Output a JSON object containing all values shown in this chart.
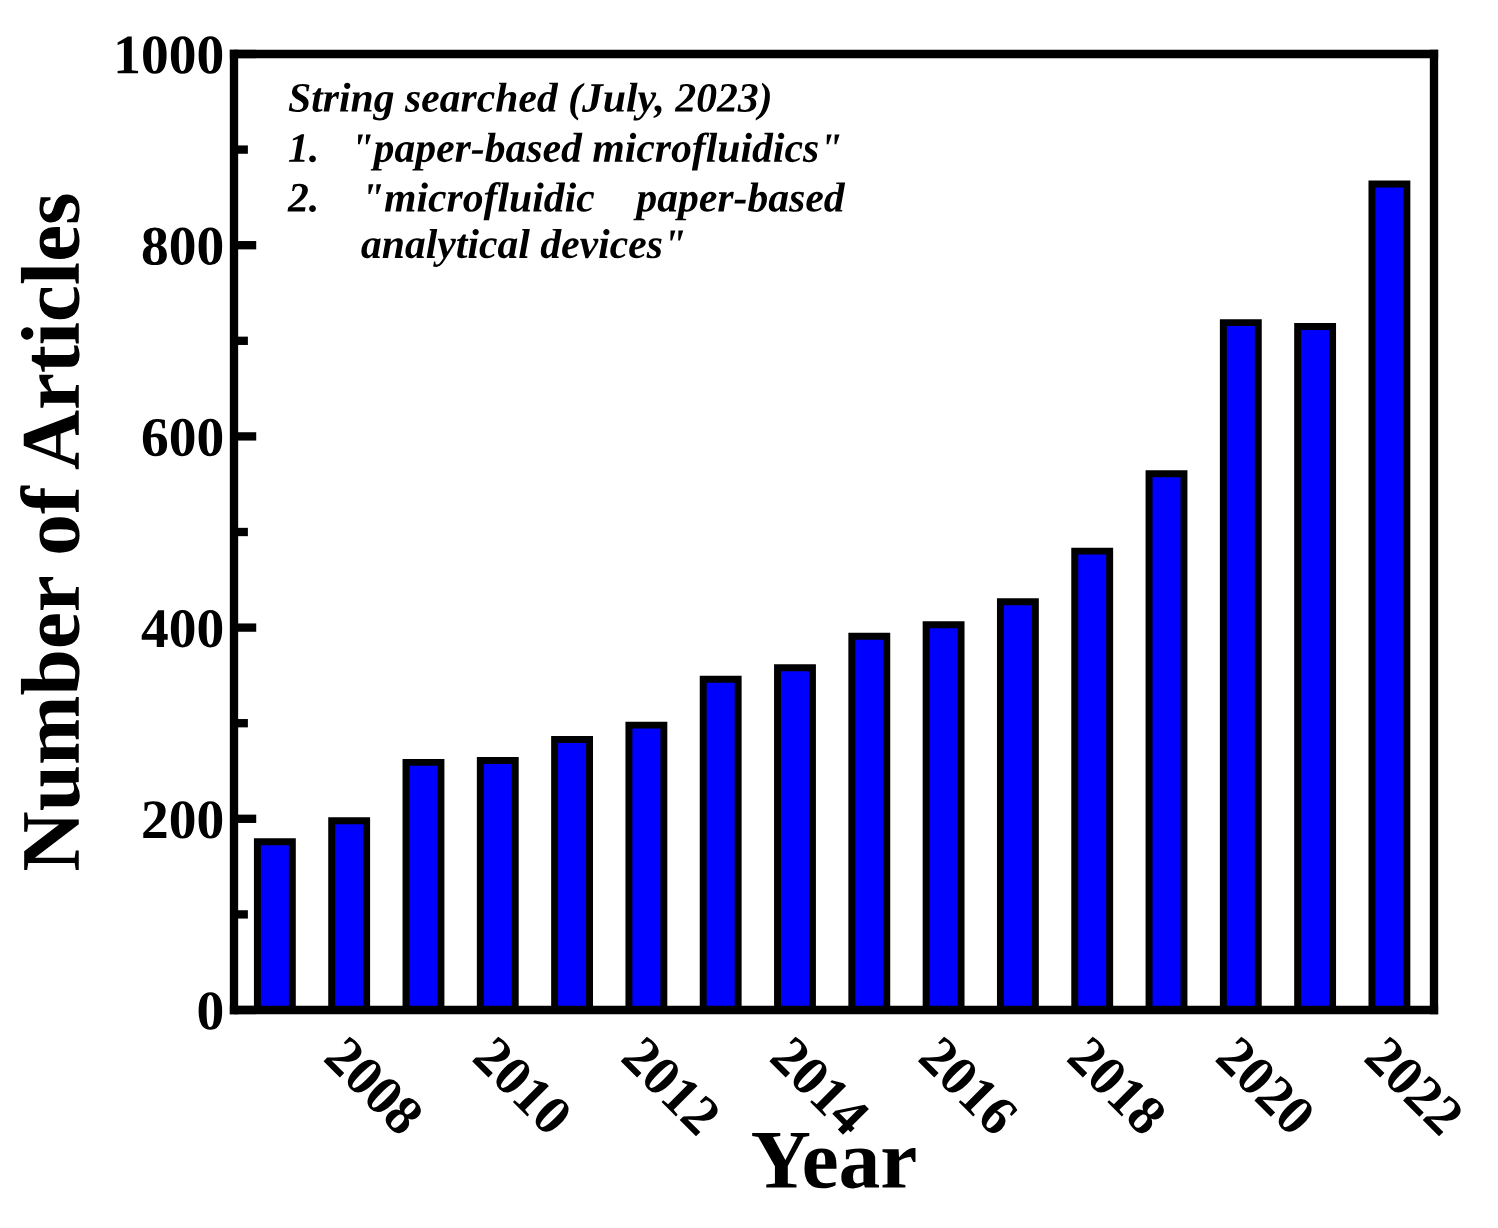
{
  "chart_data": {
    "type": "bar",
    "xlabel": "Year",
    "ylabel": "Number of Articles",
    "x": [
      2007,
      2008,
      2009,
      2010,
      2011,
      2012,
      2013,
      2014,
      2015,
      2016,
      2017,
      2018,
      2019,
      2020,
      2021,
      2022
    ],
    "values": [
      176,
      198,
      259,
      261,
      283,
      298,
      346,
      358,
      391,
      403,
      427,
      480,
      561,
      719,
      715,
      864
    ],
    "color": "#0000ff",
    "xlim": [
      2006.45,
      2022.6
    ],
    "xticks": [
      2008,
      2010,
      2012,
      2014,
      2016,
      2018,
      2020,
      2022
    ],
    "ylim": [
      0,
      1000
    ],
    "yticks": [
      0,
      200,
      400,
      600,
      800,
      1000
    ],
    "annotations": [
      "String searched (July, 2023)",
      "1.   \"paper-based microfluidics\"",
      "2.    \"microfluidic    paper-based\n       analytical devices\""
    ],
    "grid": false,
    "legend": false
  }
}
